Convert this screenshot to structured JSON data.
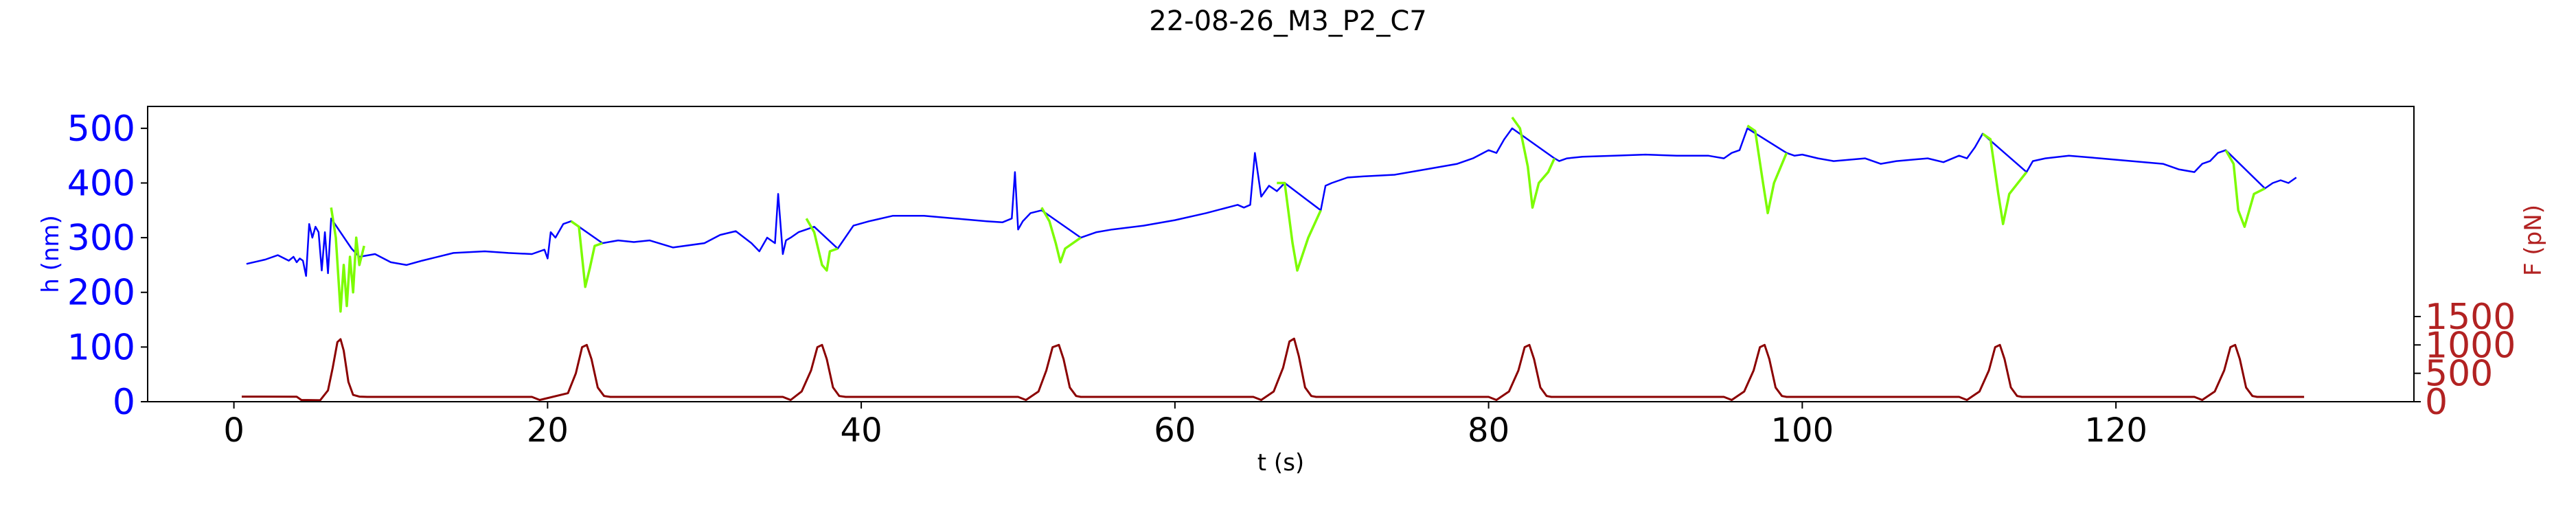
{
  "chart_data": {
    "type": "line",
    "title": "22-08-26_M3_P2_C7",
    "xlabel": "t (s)",
    "ylabel": "h (nm)",
    "ylabel_right": "F (pN)",
    "xlim": [
      -5.5,
      139
    ],
    "ylim": [
      0,
      540
    ],
    "ylim_right": [
      0,
      5200
    ],
    "x_ticks": [
      0,
      20,
      40,
      60,
      80,
      100,
      120
    ],
    "y_ticks": [
      0,
      100,
      200,
      300,
      400,
      500
    ],
    "y_ticks_right": [
      0,
      500,
      1000,
      1500
    ],
    "grid": false,
    "colors": {
      "height_base": "#0000ff",
      "height_pulse": "#7cfc00",
      "force": "#8b0000",
      "left_axis": "#0000ff",
      "right_axis": "#b22222"
    },
    "series": [
      {
        "role": "height",
        "axis": "left",
        "color": "#0000ff",
        "x": [
          0.8,
          2.0,
          2.8,
          3.5,
          3.8,
          4.0,
          4.2,
          4.4,
          4.6,
          4.8,
          5.0,
          5.2,
          5.4,
          5.6,
          5.8,
          6.0,
          6.2,
          7.5,
          8.0,
          9.0,
          10.0,
          11.0,
          12.0,
          14.0,
          16.0,
          17.5,
          19.0,
          19.8,
          20.0,
          20.2,
          20.5,
          21.0,
          21.5,
          23.5,
          24.5,
          25.5,
          26.5,
          28.0,
          30.0,
          31.0,
          32.0,
          33.0,
          33.5,
          34.0,
          34.5,
          34.7,
          35.0,
          35.2,
          35.5,
          36.0,
          36.5,
          37.0,
          38.5,
          39.5,
          40.5,
          42.0,
          44.0,
          46.0,
          48.0,
          49.0,
          49.6,
          49.8,
          50.0,
          50.3,
          50.8,
          51.5,
          54.0,
          55.0,
          56.0,
          58.0,
          60.0,
          62.0,
          64.0,
          64.4,
          64.8,
          65.1,
          65.5,
          66.0,
          66.5,
          67.0,
          69.3,
          69.6,
          70.0,
          71.0,
          72.0,
          74.0,
          76.0,
          78.0,
          79.0,
          80.0,
          80.5,
          81.0,
          81.5,
          84.2,
          84.5,
          85.0,
          86.0,
          88.0,
          90.0,
          92.0,
          94.0,
          95.0,
          95.5,
          96.0,
          96.5,
          99.0,
          99.5,
          100.0,
          101.0,
          102.0,
          104.0,
          105.0,
          106.0,
          108.0,
          109.0,
          110.0,
          110.5,
          111.0,
          111.5,
          114.3,
          114.7,
          115.5,
          117.0,
          119.0,
          121.0,
          123.0,
          124.0,
          125.0,
          125.5,
          126.0,
          126.5,
          127.0,
          129.5,
          130.0,
          130.5,
          131.0,
          131.5
        ],
        "y": [
          252,
          260,
          268,
          258,
          265,
          255,
          262,
          258,
          230,
          325,
          300,
          320,
          310,
          240,
          310,
          235,
          335,
          280,
          265,
          270,
          255,
          250,
          258,
          272,
          275,
          272,
          270,
          278,
          262,
          310,
          300,
          325,
          330,
          290,
          295,
          292,
          295,
          282,
          290,
          305,
          312,
          290,
          275,
          300,
          290,
          380,
          270,
          295,
          300,
          310,
          315,
          320,
          280,
          322,
          330,
          340,
          340,
          335,
          330,
          328,
          335,
          420,
          315,
          330,
          345,
          350,
          300,
          310,
          315,
          322,
          332,
          345,
          360,
          355,
          360,
          455,
          375,
          395,
          385,
          400,
          350,
          395,
          400,
          410,
          412,
          415,
          425,
          435,
          445,
          460,
          455,
          480,
          500,
          445,
          440,
          445,
          448,
          450,
          452,
          450,
          450,
          445,
          455,
          460,
          500,
          455,
          450,
          452,
          445,
          440,
          445,
          435,
          440,
          445,
          438,
          450,
          445,
          465,
          490,
          420,
          440,
          445,
          450,
          445,
          440,
          435,
          425,
          420,
          435,
          440,
          455,
          460,
          390,
          400,
          405,
          400,
          410
        ]
      },
      {
        "role": "height-pulse",
        "axis": "left",
        "color": "#7cfc00",
        "segments": [
          {
            "x": [
              6.2,
              6.5,
              6.8,
              7.0,
              7.2,
              7.4,
              7.6,
              7.8,
              8.0,
              8.3
            ],
            "y": [
              355,
              300,
              165,
              250,
              175,
              265,
              200,
              300,
              250,
              285
            ]
          },
          {
            "x": [
              21.5,
              22.0,
              22.4,
              22.7,
              23.0,
              23.5
            ],
            "y": [
              330,
              320,
              210,
              245,
              285,
              290
            ]
          },
          {
            "x": [
              36.5,
              37.0,
              37.5,
              37.8,
              38.0,
              38.5
            ],
            "y": [
              335,
              310,
              250,
              240,
              275,
              280
            ]
          },
          {
            "x": [
              51.5,
              52.0,
              52.4,
              52.7,
              53.0,
              54.0
            ],
            "y": [
              355,
              330,
              290,
              255,
              280,
              300
            ]
          },
          {
            "x": [
              66.5,
              67.0,
              67.5,
              67.8,
              68.5,
              69.3
            ],
            "y": [
              400,
              400,
              290,
              240,
              300,
              350
            ]
          },
          {
            "x": [
              81.5,
              82.0,
              82.5,
              82.8,
              83.2,
              83.8,
              84.2
            ],
            "y": [
              520,
              500,
              430,
              355,
              400,
              420,
              445
            ]
          },
          {
            "x": [
              96.5,
              97.0,
              97.5,
              97.8,
              98.2,
              99.0
            ],
            "y": [
              505,
              495,
              400,
              345,
              400,
              455
            ]
          },
          {
            "x": [
              111.5,
              112.0,
              112.5,
              112.8,
              113.2,
              114.3
            ],
            "y": [
              490,
              480,
              380,
              325,
              380,
              420
            ]
          },
          {
            "x": [
              127.0,
              127.5,
              127.8,
              128.2,
              128.8,
              129.5
            ],
            "y": [
              460,
              435,
              350,
              320,
              380,
              390
            ]
          }
        ]
      },
      {
        "role": "force",
        "axis": "right",
        "color": "#8b0000",
        "x": [
          0.5,
          4.0,
          4.3,
          5.5,
          6.0,
          6.3,
          6.6,
          6.8,
          7.0,
          7.3,
          7.6,
          8.0,
          8.5,
          19.0,
          19.5,
          21.3,
          21.8,
          22.2,
          22.5,
          22.8,
          23.2,
          23.6,
          24.0,
          35.0,
          35.5,
          36.2,
          36.8,
          37.2,
          37.5,
          37.8,
          38.2,
          38.6,
          39.0,
          50.0,
          50.5,
          51.3,
          51.8,
          52.2,
          52.6,
          52.9,
          53.3,
          53.7,
          54.0,
          65.0,
          65.5,
          66.3,
          66.9,
          67.3,
          67.6,
          67.9,
          68.3,
          68.7,
          69.0,
          80.0,
          80.5,
          81.3,
          81.9,
          82.3,
          82.6,
          82.9,
          83.3,
          83.7,
          84.0,
          95.0,
          95.5,
          96.3,
          96.9,
          97.3,
          97.6,
          97.9,
          98.3,
          98.7,
          99.0,
          110.0,
          110.5,
          111.3,
          111.9,
          112.3,
          112.6,
          112.9,
          113.3,
          113.7,
          114.0,
          125.0,
          125.5,
          126.3,
          126.9,
          127.3,
          127.6,
          127.9,
          128.3,
          128.7,
          129.0,
          132.0
        ],
        "y": [
          90,
          88,
          30,
          25,
          200,
          600,
          1050,
          1100,
          900,
          350,
          120,
          90,
          85,
          85,
          30,
          150,
          500,
          960,
          1000,
          750,
          250,
          100,
          85,
          85,
          30,
          180,
          550,
          960,
          1000,
          750,
          250,
          100,
          85,
          85,
          30,
          180,
          550,
          960,
          1000,
          750,
          250,
          100,
          85,
          85,
          30,
          180,
          600,
          1060,
          1110,
          800,
          250,
          100,
          85,
          85,
          30,
          180,
          550,
          960,
          1000,
          750,
          250,
          100,
          85,
          85,
          30,
          180,
          550,
          960,
          1000,
          750,
          250,
          100,
          85,
          85,
          30,
          180,
          550,
          960,
          1000,
          750,
          250,
          100,
          85,
          85,
          30,
          180,
          550,
          960,
          1000,
          750,
          250,
          100,
          85,
          85
        ]
      }
    ]
  }
}
